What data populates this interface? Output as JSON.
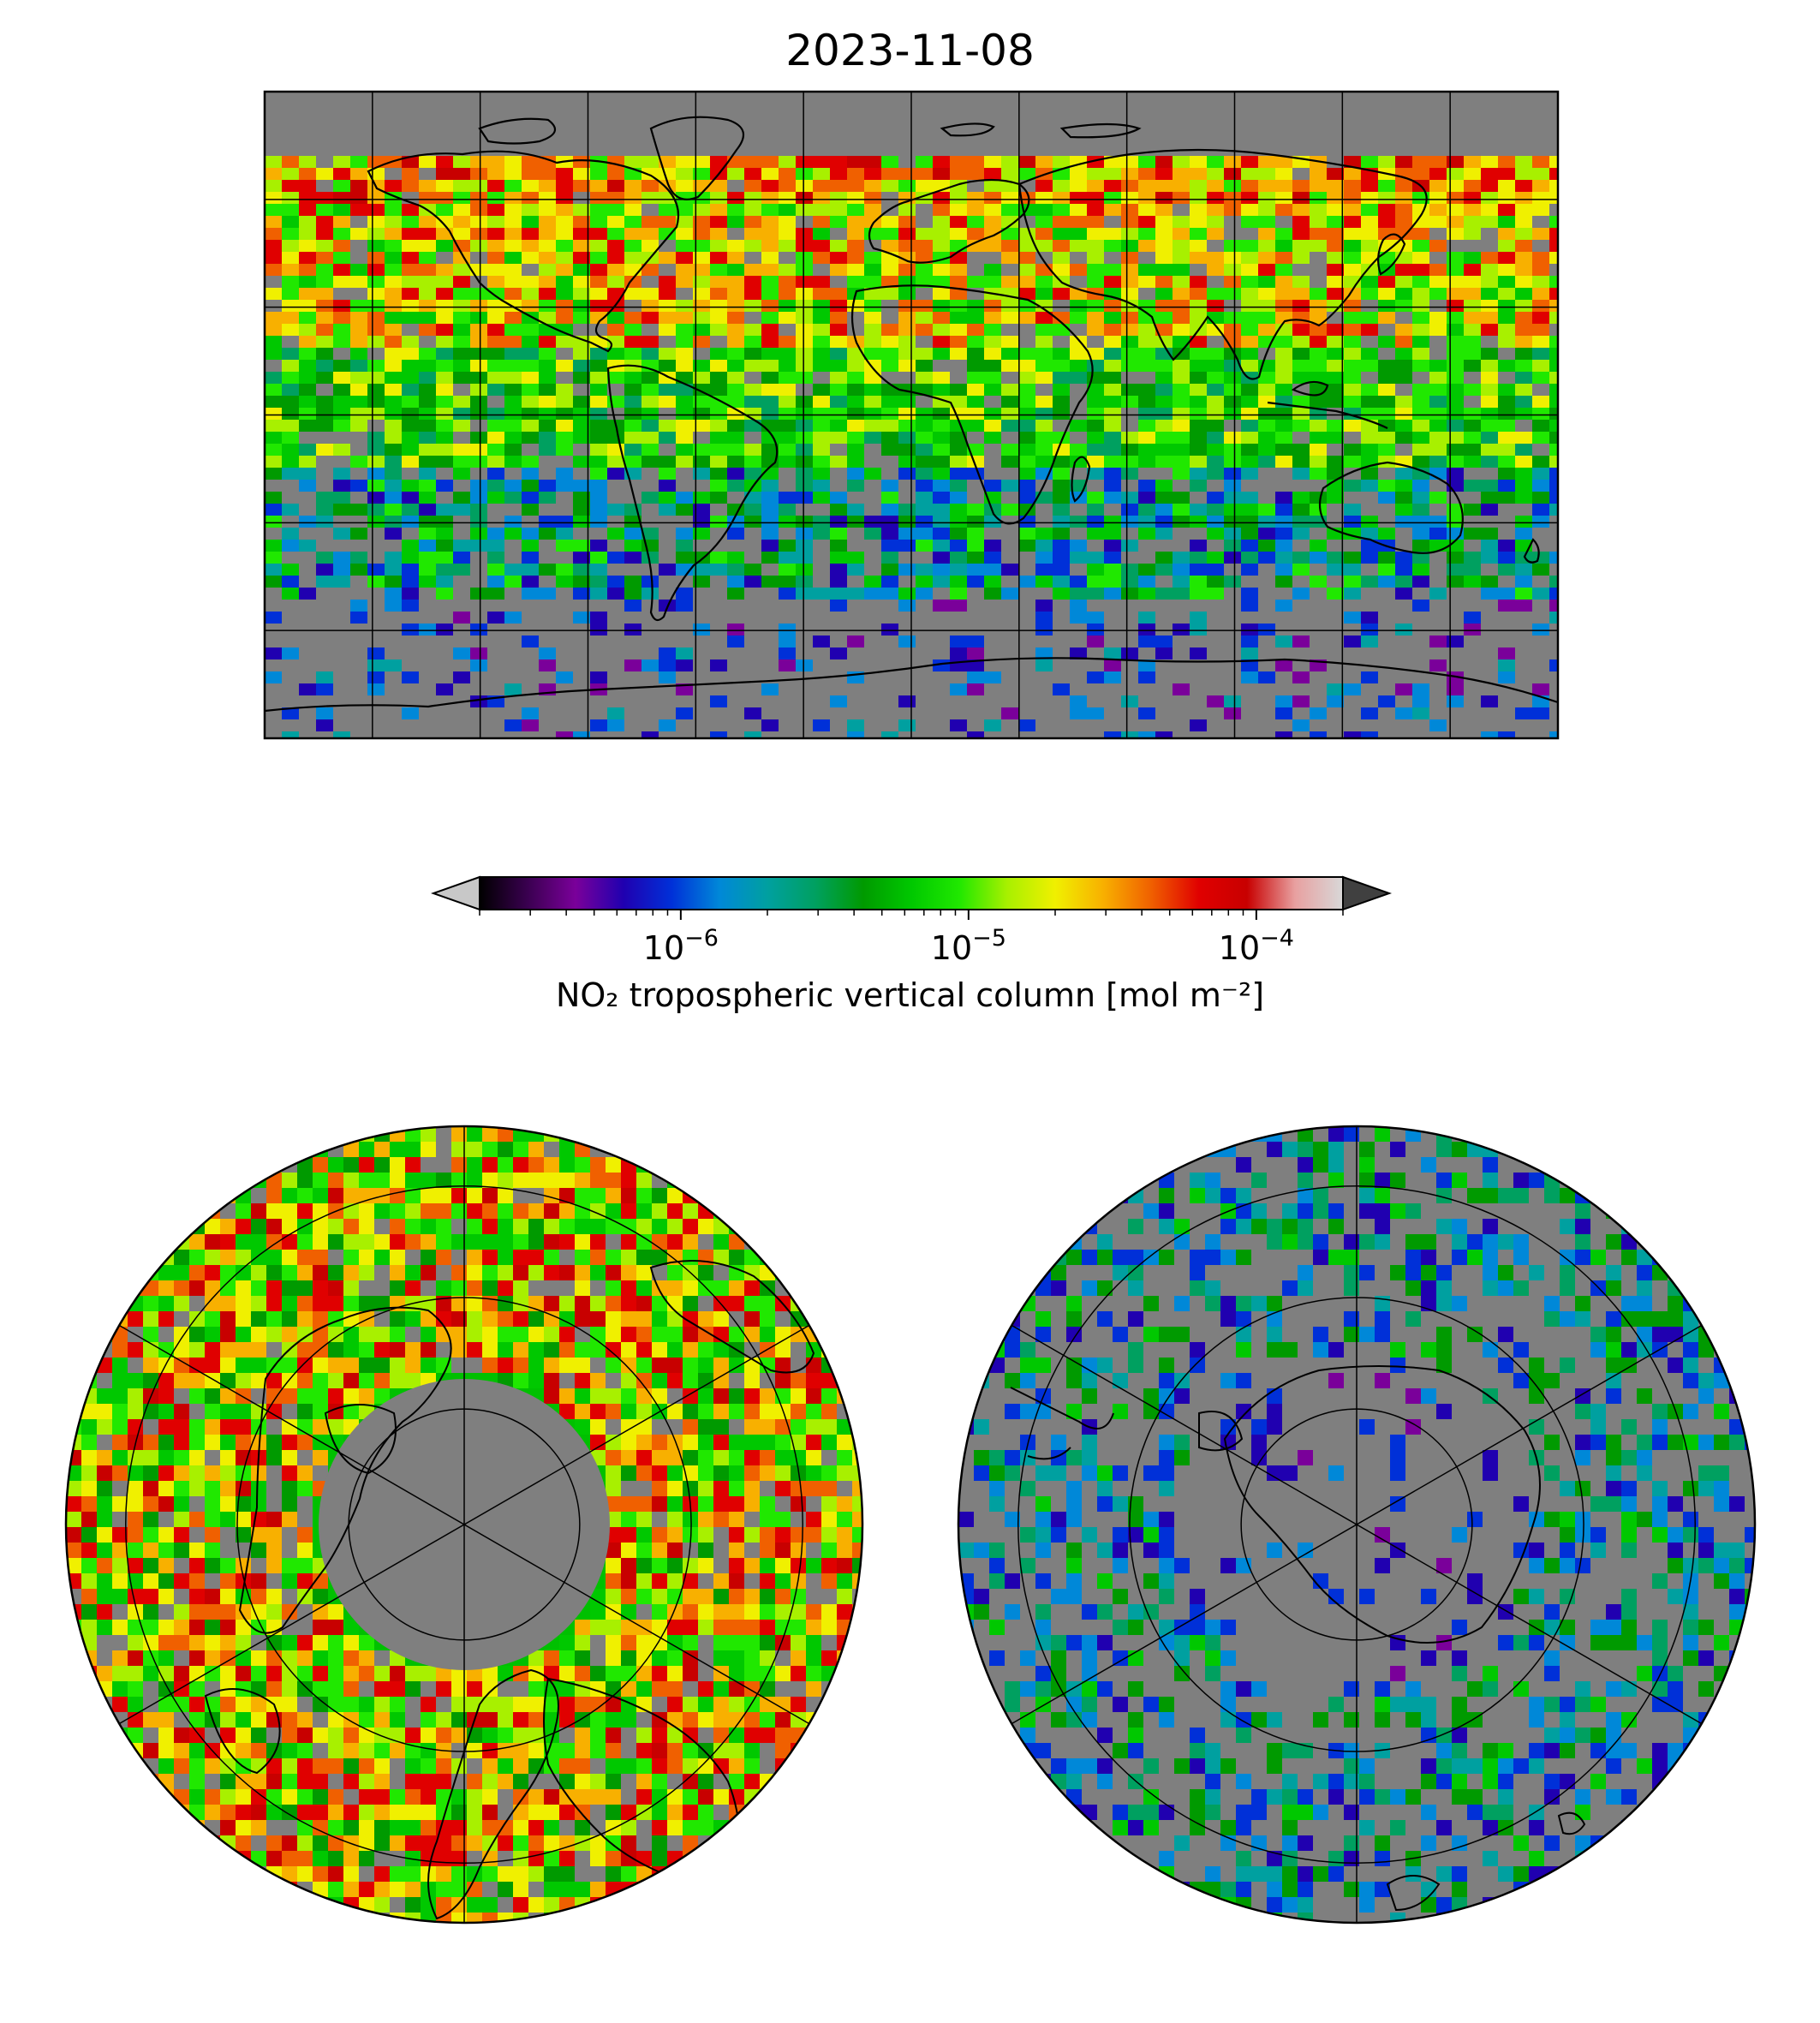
{
  "title": "2023-11-08",
  "colors": {
    "no_data": "#7f7f7f",
    "background": "#ffffff",
    "coastline": "#000000",
    "colormap": [
      "#000000",
      "#3a0050",
      "#7a009a",
      "#2000b0",
      "#0030d8",
      "#0088d8",
      "#00a0a0",
      "#00a060",
      "#009a00",
      "#00c800",
      "#20e800",
      "#a8f000",
      "#f0f000",
      "#f8b000",
      "#f06000",
      "#e00000",
      "#c80000",
      "#e8a0a0",
      "#d8d8d8"
    ],
    "under": "#c8c8c8",
    "over": "#404040"
  },
  "maps": [
    {
      "name": "global",
      "projection": "equirectangular",
      "gridlines": {
        "lon_step_deg": 30,
        "lat_step_deg": 30
      }
    },
    {
      "name": "north-polar",
      "projection": "north-polar-stereographic",
      "gridlines": {
        "lon_step_deg": 60,
        "lat_circles_deg": [
          30,
          45,
          60,
          75
        ]
      }
    },
    {
      "name": "south-polar",
      "projection": "south-polar-stereographic",
      "gridlines": {
        "lon_step_deg": 60,
        "lat_circles_deg": [
          -30,
          -45,
          -60,
          -75
        ]
      }
    }
  ],
  "colorbar": {
    "scale": "log",
    "range": [
      2e-07,
      0.0002
    ],
    "extend": "both",
    "ticks": [
      {
        "value": 1e-06,
        "base": "10",
        "exp": "−6"
      },
      {
        "value": 1e-05,
        "base": "10",
        "exp": "−5"
      },
      {
        "value": 0.0001,
        "base": "10",
        "exp": "−4"
      }
    ],
    "label": "NO₂ tropospheric vertical column [mol m⁻²]"
  }
}
